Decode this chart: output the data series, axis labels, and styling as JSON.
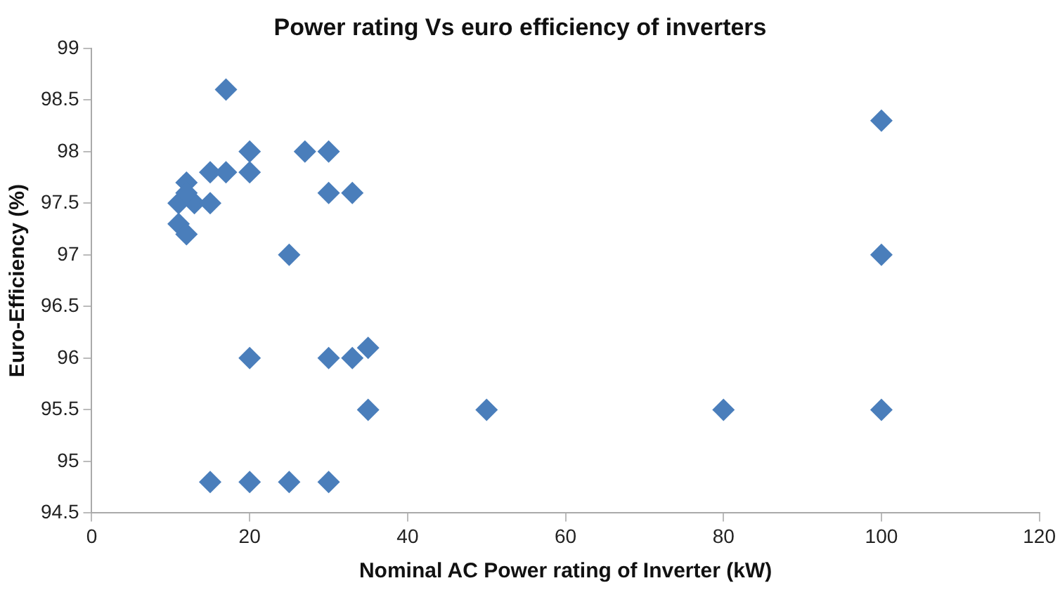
{
  "chart_data": {
    "type": "scatter",
    "title": "Power rating Vs euro efficiency of inverters",
    "xlabel": "Nominal AC Power rating of Inverter (kW)",
    "ylabel": "Euro-Efficiency (%)",
    "x": [
      17,
      20,
      27,
      30,
      12,
      15,
      17,
      20,
      11,
      13,
      15,
      12,
      30,
      33,
      11,
      12,
      25,
      20,
      30,
      33,
      35,
      35,
      50,
      80,
      100,
      100,
      100,
      15,
      20,
      25,
      30
    ],
    "series": [
      {
        "color": "#4a7ebb",
        "values": [
          98.6,
          98,
          98,
          98,
          97.7,
          97.8,
          97.8,
          97.8,
          97.5,
          97.5,
          97.5,
          97.6,
          97.6,
          97.6,
          97.3,
          97.2,
          97,
          96,
          96,
          96,
          96.1,
          95.5,
          95.5,
          95.5,
          95.5,
          97,
          98.3,
          94.8,
          94.8,
          94.8,
          94.8
        ]
      }
    ],
    "xlim": [
      0,
      120
    ],
    "xticks": [
      0,
      20,
      40,
      60,
      80,
      100,
      120
    ],
    "ylim": [
      94.5,
      99
    ],
    "yticks": [
      94.5,
      95,
      95.5,
      96,
      96.5,
      97,
      97.5,
      98,
      98.5,
      99
    ],
    "marker": "diamond",
    "grid": false,
    "legend": false
  }
}
